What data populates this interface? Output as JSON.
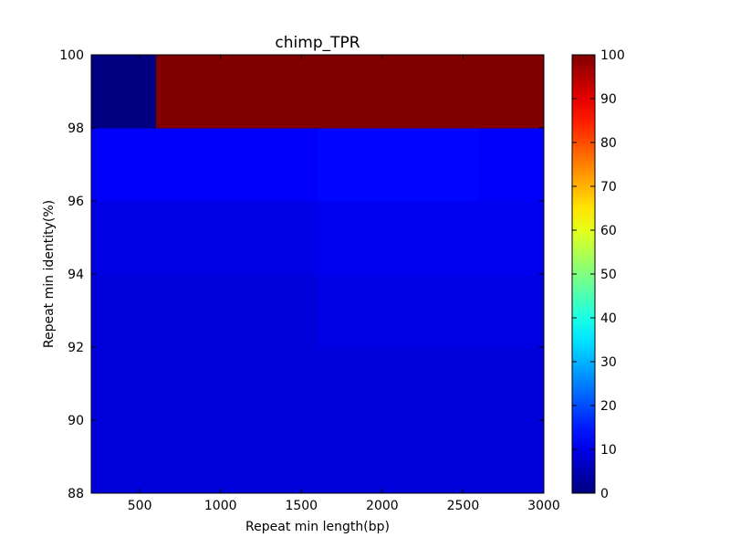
{
  "chart_data": {
    "type": "heatmap",
    "title": "chimp_TPR",
    "xlabel": "Repeat min length(bp)",
    "ylabel": "Repeat min identity(%)",
    "xlim": [
      200,
      3000
    ],
    "ylim": [
      88,
      100
    ],
    "x_ticks": [
      500,
      1000,
      1500,
      2000,
      2500,
      3000
    ],
    "y_ticks": [
      88,
      90,
      92,
      94,
      96,
      98,
      100
    ],
    "colormap": "jet",
    "color_range": [
      0,
      100
    ],
    "colorbar_ticks": [
      0,
      10,
      20,
      30,
      40,
      50,
      60,
      70,
      80,
      90,
      100
    ],
    "x_bin_edges": [
      200,
      400,
      600,
      800,
      1000,
      1200,
      1400,
      1600,
      1800,
      2000,
      2200,
      2400,
      2600,
      2800,
      3000
    ],
    "y_bin_edges": [
      88,
      90,
      92,
      94,
      96,
      98,
      100
    ],
    "cell_values": [
      [
        9,
        9,
        9,
        9,
        9,
        9,
        9,
        9,
        9,
        9,
        9,
        9,
        9,
        9
      ],
      [
        9,
        9,
        9,
        9,
        9,
        9,
        9,
        9,
        9,
        9,
        9,
        9,
        9,
        9
      ],
      [
        9,
        9,
        9,
        9,
        9,
        9,
        9,
        10,
        10,
        10,
        10,
        10,
        10,
        10
      ],
      [
        10,
        10,
        10,
        10,
        10,
        10,
        10,
        11,
        11,
        11,
        11,
        11,
        11,
        11
      ],
      [
        12,
        12,
        12,
        12,
        12,
        12,
        12,
        13,
        13,
        13,
        13,
        13,
        12,
        12
      ],
      [
        0,
        0,
        100,
        100,
        100,
        100,
        100,
        100,
        100,
        100,
        100,
        100,
        100,
        100
      ]
    ]
  }
}
